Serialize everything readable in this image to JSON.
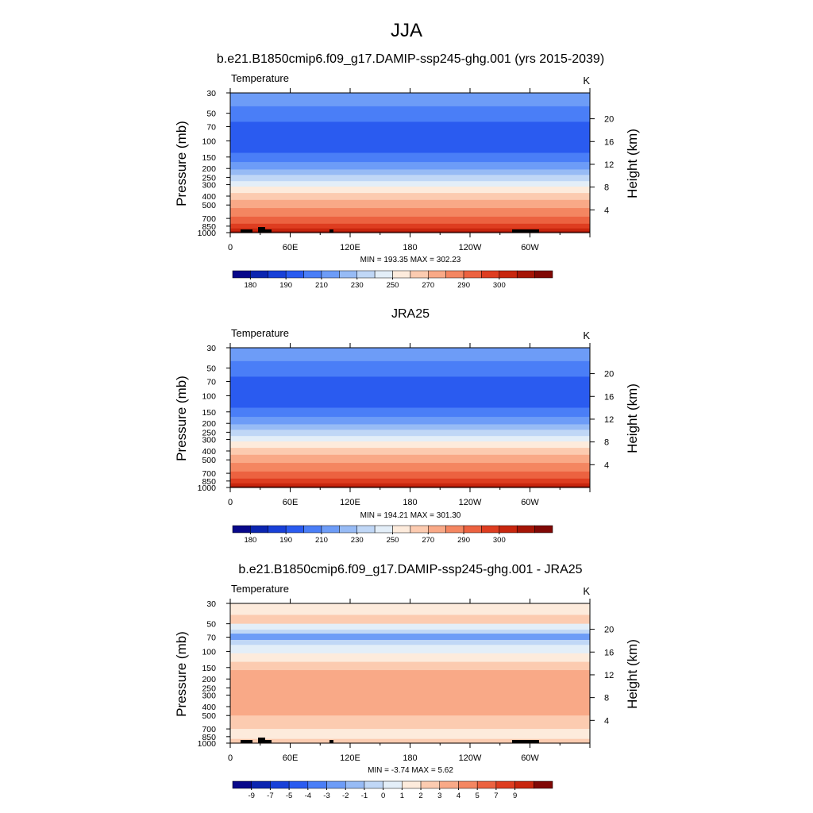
{
  "figure": {
    "title": "JJA",
    "colors": {
      "temp_palette": [
        "#08088a",
        "#0b25b0",
        "#1840d8",
        "#2a5bf0",
        "#4a7ef7",
        "#6d9cf7",
        "#97bbf5",
        "#c0d7f6",
        "#e3eef8",
        "#fdebdc",
        "#fccbb0",
        "#f9a987",
        "#f48661",
        "#ec6240",
        "#de3d20",
        "#c8260e",
        "#a51506",
        "#800805"
      ],
      "diff_palette": [
        "#08088a",
        "#0b25b0",
        "#1840d8",
        "#2a5bf0",
        "#4a7ef7",
        "#6d9cf7",
        "#97bbf5",
        "#c0d7f6",
        "#e3eef8",
        "#fdebdc",
        "#fccbb0",
        "#f9a987",
        "#f48661",
        "#ec6240",
        "#de3d20",
        "#c8260e",
        "#800805"
      ],
      "terrain": "#000000"
    }
  },
  "chart_data": [
    {
      "type": "heatmap",
      "title": "b.e21.B1850cmip6.f09_g17.DAMIP-ssp245-ghg.001 (yrs 2015-2039)",
      "left_label": "Temperature",
      "right_label": "K",
      "ylabel": "Pressure (mb)",
      "y2label": "Height (km)",
      "x_ticks": [
        "0",
        "60E",
        "120E",
        "180",
        "120W",
        "60W"
      ],
      "y_ticks": [
        "30",
        "50",
        "70",
        "100",
        "150",
        "200",
        "250",
        "300",
        "400",
        "500",
        "700",
        "850",
        "1000"
      ],
      "y2_ticks": [
        "20",
        "16",
        "12",
        "8",
        "4"
      ],
      "stats": "MIN = 193.35  MAX = 302.23",
      "colorbar_labels": [
        "180",
        "190",
        "210",
        "230",
        "250",
        "270",
        "290",
        "300"
      ],
      "levels": [
        {
          "p": [
            30,
            42
          ],
          "c": 5
        },
        {
          "p": [
            42,
            62
          ],
          "c": 4
        },
        {
          "p": [
            62,
            135
          ],
          "c": 3
        },
        {
          "p": [
            135,
            170
          ],
          "c": 4
        },
        {
          "p": [
            170,
            205
          ],
          "c": 5
        },
        {
          "p": [
            205,
            235
          ],
          "c": 6
        },
        {
          "p": [
            235,
            275
          ],
          "c": 7
        },
        {
          "p": [
            275,
            315
          ],
          "c": 8
        },
        {
          "p": [
            315,
            370
          ],
          "c": 9
        },
        {
          "p": [
            370,
            440
          ],
          "c": 10
        },
        {
          "p": [
            440,
            540
          ],
          "c": 11
        },
        {
          "p": [
            540,
            670
          ],
          "c": 12
        },
        {
          "p": [
            670,
            800
          ],
          "c": 13
        },
        {
          "p": [
            800,
            900
          ],
          "c": 14
        },
        {
          "p": [
            900,
            960
          ],
          "c": 15
        },
        {
          "p": [
            960,
            1000
          ],
          "c": 16
        }
      ]
    },
    {
      "type": "heatmap",
      "title": "JRA25",
      "left_label": "Temperature",
      "right_label": "K",
      "ylabel": "Pressure (mb)",
      "y2label": "Height (km)",
      "x_ticks": [
        "0",
        "60E",
        "120E",
        "180",
        "120W",
        "60W"
      ],
      "y_ticks": [
        "30",
        "50",
        "70",
        "100",
        "150",
        "200",
        "250",
        "300",
        "400",
        "500",
        "700",
        "850",
        "1000"
      ],
      "y2_ticks": [
        "20",
        "16",
        "12",
        "8",
        "4"
      ],
      "stats": "MIN = 194.21  MAX = 301.30",
      "colorbar_labels": [
        "180",
        "190",
        "210",
        "230",
        "250",
        "270",
        "290",
        "300"
      ],
      "levels": [
        {
          "p": [
            30,
            42
          ],
          "c": 5
        },
        {
          "p": [
            42,
            62
          ],
          "c": 4
        },
        {
          "p": [
            62,
            135
          ],
          "c": 3
        },
        {
          "p": [
            135,
            170
          ],
          "c": 4
        },
        {
          "p": [
            170,
            205
          ],
          "c": 5
        },
        {
          "p": [
            205,
            235
          ],
          "c": 6
        },
        {
          "p": [
            235,
            275
          ],
          "c": 7
        },
        {
          "p": [
            275,
            315
          ],
          "c": 8
        },
        {
          "p": [
            315,
            370
          ],
          "c": 9
        },
        {
          "p": [
            370,
            440
          ],
          "c": 10
        },
        {
          "p": [
            440,
            540
          ],
          "c": 11
        },
        {
          "p": [
            540,
            670
          ],
          "c": 12
        },
        {
          "p": [
            670,
            800
          ],
          "c": 13
        },
        {
          "p": [
            800,
            900
          ],
          "c": 14
        },
        {
          "p": [
            900,
            960
          ],
          "c": 15
        },
        {
          "p": [
            960,
            1000
          ],
          "c": 16
        }
      ]
    },
    {
      "type": "heatmap",
      "title": "b.e21.B1850cmip6.f09_g17.DAMIP-ssp245-ghg.001 - JRA25",
      "left_label": "Temperature",
      "right_label": "K",
      "ylabel": "Pressure (mb)",
      "y2label": "Height (km)",
      "x_ticks": [
        "0",
        "60E",
        "120E",
        "180",
        "120W",
        "60W"
      ],
      "y_ticks": [
        "30",
        "50",
        "70",
        "100",
        "150",
        "200",
        "250",
        "300",
        "400",
        "500",
        "700",
        "850",
        "1000"
      ],
      "y2_ticks": [
        "20",
        "16",
        "12",
        "8",
        "4"
      ],
      "stats": "MIN =  -3.74  MAX =   5.62",
      "colorbar_labels": [
        "-9",
        "-7",
        "-5",
        "-4",
        "-3",
        "-2",
        "-1",
        "0",
        "1",
        "2",
        "3",
        "4",
        "5",
        "7",
        "9"
      ],
      "levels": [
        {
          "p": [
            30,
            40
          ],
          "c": 9
        },
        {
          "p": [
            40,
            50
          ],
          "c": 10
        },
        {
          "p": [
            50,
            58
          ],
          "c": 8
        },
        {
          "p": [
            58,
            64
          ],
          "c": 7
        },
        {
          "p": [
            64,
            75
          ],
          "c": 5
        },
        {
          "p": [
            75,
            85
          ],
          "c": 7
        },
        {
          "p": [
            85,
            105
          ],
          "c": 8
        },
        {
          "p": [
            105,
            130
          ],
          "c": 9
        },
        {
          "p": [
            130,
            160
          ],
          "c": 10
        },
        {
          "p": [
            160,
            250
          ],
          "c": 11
        },
        {
          "p": [
            250,
            500
          ],
          "c": 11
        },
        {
          "p": [
            500,
            700
          ],
          "c": 10
        },
        {
          "p": [
            700,
            900
          ],
          "c": 9
        },
        {
          "p": [
            900,
            1000
          ],
          "c": 10
        }
      ]
    }
  ]
}
